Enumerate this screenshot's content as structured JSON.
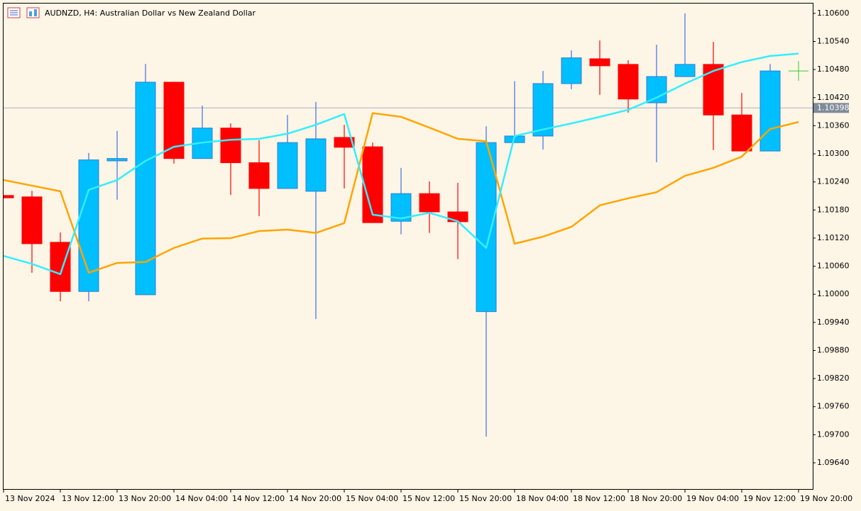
{
  "chart_data": {
    "type": "candlestick",
    "title": "AUDNZD, H4:  Australian Dollar vs New Zealand Dollar",
    "categories": [
      "13 Nov 2024",
      null,
      "13 Nov 12:00",
      null,
      "13 Nov 20:00",
      null,
      "14 Nov 04:00",
      null,
      "14 Nov 12:00",
      null,
      "14 Nov 20:00",
      null,
      "15 Nov 04:00",
      null,
      "15 Nov 12:00",
      null,
      "15 Nov 20:00",
      null,
      "18 Nov 04:00",
      null,
      "18 Nov 12:00",
      null,
      "18 Nov 20:00",
      null,
      "19 Nov 04:00",
      null,
      "19 Nov 12:00",
      null,
      "19 Nov 20:00"
    ],
    "open": [
      1.10211,
      1.10208,
      1.10111,
      1.10006,
      1.10285,
      1.09999,
      1.10453,
      1.1029,
      1.10355,
      1.10281,
      1.10226,
      1.1022,
      1.10335,
      1.10315,
      1.10156,
      1.10215,
      1.10176,
      1.09963,
      1.10324,
      1.10338,
      1.1045,
      1.10503,
      1.10491,
      1.10409,
      1.10465,
      1.10491,
      1.10383,
      1.10306,
      null
    ],
    "high": [
      1.10211,
      1.10221,
      1.10132,
      1.10302,
      1.10349,
      1.10492,
      1.10453,
      1.10403,
      1.10365,
      1.10329,
      1.10383,
      1.10411,
      1.10362,
      1.10324,
      1.1027,
      1.10241,
      1.10238,
      1.10359,
      1.10455,
      1.10477,
      1.10521,
      1.10542,
      1.105,
      1.10533,
      1.106,
      1.10539,
      1.1043,
      1.10492,
      null
    ],
    "low": [
      1.10206,
      1.10046,
      1.09985,
      1.09985,
      1.10202,
      1.09999,
      1.10279,
      1.1029,
      1.10212,
      1.10167,
      1.10226,
      1.09947,
      1.10226,
      1.10153,
      1.10128,
      1.10131,
      1.10075,
      1.09696,
      1.10324,
      1.10309,
      1.10438,
      1.10426,
      1.10388,
      1.10282,
      1.10465,
      1.10308,
      1.10306,
      1.10306,
      null
    ],
    "close": [
      1.10206,
      1.10108,
      1.10006,
      1.10287,
      1.1029,
      1.10453,
      1.1029,
      1.10355,
      1.10281,
      1.10226,
      1.10324,
      1.10332,
      1.10314,
      1.10153,
      1.10215,
      1.10176,
      1.10155,
      1.10324,
      1.10338,
      1.1045,
      1.10505,
      1.10488,
      1.10417,
      1.10465,
      1.10491,
      1.10383,
      1.10306,
      1.10477,
      null
    ],
    "up_color": "#00bfff",
    "down_color": "#ff0000",
    "up_wick_color": "#3d6fe6",
    "down_wick_color": "#ff0000",
    "lines": [
      {
        "color": "#ffa500",
        "values": [
          1.10244,
          1.10232,
          1.1022,
          1.10046,
          1.10067,
          1.10069,
          1.10099,
          1.10119,
          1.1012,
          1.10135,
          1.10138,
          1.10131,
          1.10152,
          1.10387,
          1.10379,
          1.10356,
          1.10332,
          1.10327,
          1.10108,
          1.10123,
          1.10144,
          1.1019,
          1.10205,
          1.10218,
          1.10253,
          1.1027,
          1.10294,
          1.10353,
          1.10368
        ]
      },
      {
        "color": "#33eeff",
        "values": [
          1.10082,
          1.10065,
          1.10043,
          1.10223,
          1.10244,
          1.10285,
          1.10315,
          1.10324,
          1.1033,
          1.10332,
          1.10343,
          1.10362,
          1.10385,
          1.1017,
          1.10162,
          1.10174,
          1.10156,
          1.10099,
          1.10338,
          1.10352,
          1.10365,
          1.10379,
          1.10394,
          1.1042,
          1.1045,
          1.10477,
          1.10496,
          1.10509,
          1.10514
        ]
      }
    ],
    "price_line": 1.10398,
    "price_line_color": "#a9b2c3",
    "ylim": [
      1.09584,
      1.10621
    ],
    "yticks": [
      {
        "value": 1.106,
        "label": "1.10600"
      },
      {
        "value": 1.1054,
        "label": "1.10540"
      },
      {
        "value": 1.1048,
        "label": "1.10480"
      },
      {
        "value": 1.1042,
        "label": "1.10420"
      },
      {
        "value": 1.1036,
        "label": "1.10360"
      },
      {
        "value": 1.103,
        "label": "1.10300"
      },
      {
        "value": 1.1024,
        "label": "1.10240"
      },
      {
        "value": 1.1018,
        "label": "1.10180"
      },
      {
        "value": 1.1012,
        "label": "1.10120"
      },
      {
        "value": 1.1006,
        "label": "1.10060"
      },
      {
        "value": 1.1,
        "label": "1.10000"
      },
      {
        "value": 1.0994,
        "label": "1.09940"
      },
      {
        "value": 1.0988,
        "label": "1.09880"
      },
      {
        "value": 1.0982,
        "label": "1.09820"
      },
      {
        "value": 1.0976,
        "label": "1.09760"
      },
      {
        "value": 1.097,
        "label": "1.09700"
      },
      {
        "value": 1.0964,
        "label": "1.09640"
      }
    ],
    "grid": false
  }
}
